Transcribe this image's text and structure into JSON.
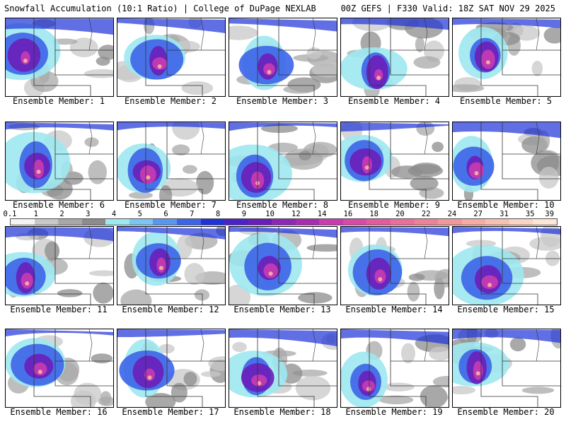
{
  "header": {
    "left_title": "Snowfall Accumulation (10:1 Ratio) | College of DuPage NEXLAB",
    "right_title": "00Z GEFS | F330 Valid: 18Z SAT NOV 29 2025"
  },
  "colors": {
    "color_scale": [
      "#f4f4f4",
      "#c8c8c8",
      "#a8a8a8",
      "#8c8c8c",
      "#9ee8f0",
      "#7cc4f4",
      "#5a96f0",
      "#3c64e8",
      "#1e32d8",
      "#4a22c8",
      "#6a1eb8",
      "#8c28b4",
      "#a82cb0",
      "#c83cb0",
      "#d84aa8",
      "#e05c9c",
      "#e8709a",
      "#ec8498",
      "#f0989c",
      "#f4aca4",
      "#f8c0b0",
      "#fad4c4",
      "#fce6d8"
    ]
  },
  "scale_labels": [
    "0.1",
    "1",
    "2",
    "3",
    "4",
    "5",
    "6",
    "7",
    "8",
    "9",
    "10",
    "12",
    "14",
    "16",
    "18",
    "20",
    "22",
    "24",
    "27",
    "31",
    "35",
    "39"
  ],
  "members": [
    {
      "caption": "Ensemble Member: 1"
    },
    {
      "caption": "Ensemble Member: 2"
    },
    {
      "caption": "Ensemble Member: 3"
    },
    {
      "caption": "Ensemble Member: 4"
    },
    {
      "caption": "Ensemble Member: 5"
    },
    {
      "caption": "Ensemble Member: 6"
    },
    {
      "caption": "Ensemble Member: 7"
    },
    {
      "caption": "Ensemble Member: 8"
    },
    {
      "caption": "Ensemble Member: 9"
    },
    {
      "caption": "Ensemble Member: 10"
    },
    {
      "caption": "Ensemble Member: 11"
    },
    {
      "caption": "Ensemble Member: 12"
    },
    {
      "caption": "Ensemble Member: 13"
    },
    {
      "caption": "Ensemble Member: 14"
    },
    {
      "caption": "Ensemble Member: 15"
    },
    {
      "caption": "Ensemble Member: 16"
    },
    {
      "caption": "Ensemble Member: 17"
    },
    {
      "caption": "Ensemble Member: 18"
    },
    {
      "caption": "Ensemble Member: 19"
    },
    {
      "caption": "Ensemble Member: 20"
    }
  ]
}
